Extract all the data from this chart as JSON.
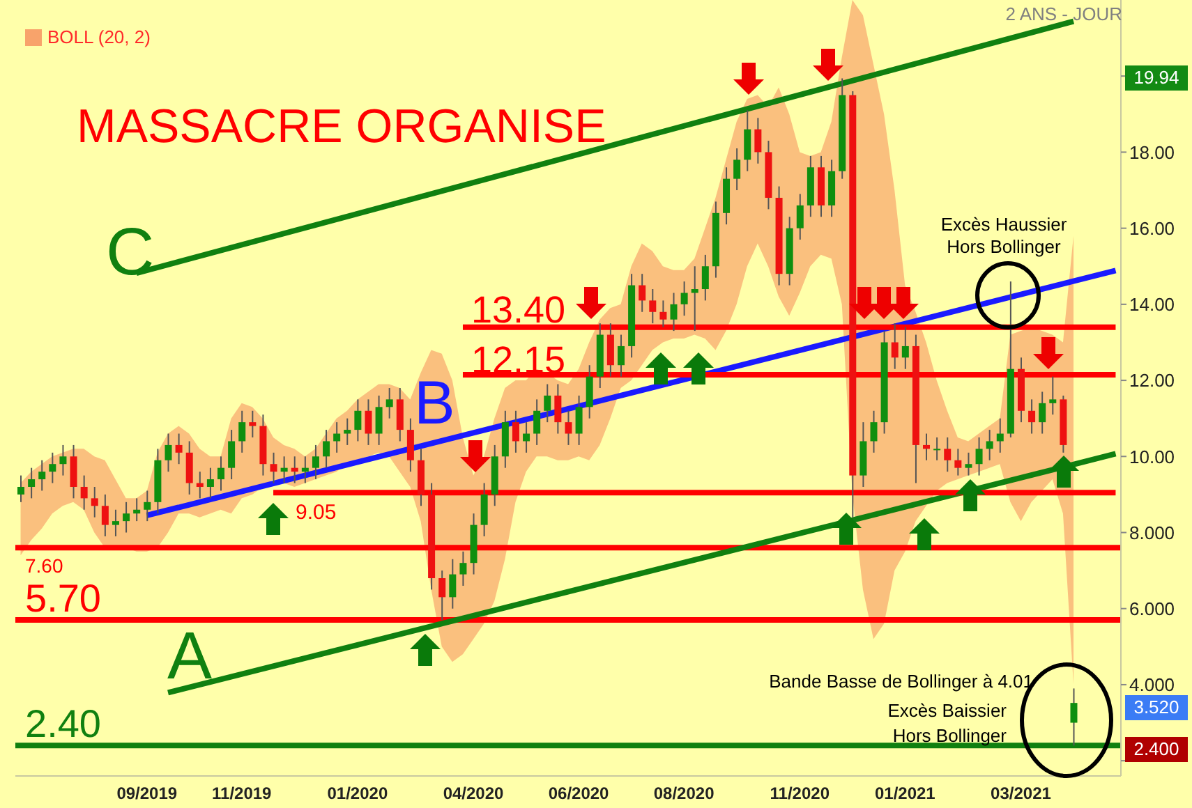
{
  "chart_data": {
    "type": "candlestick",
    "title": "MASSACRE ORGANISE",
    "categories": [
      null,
      null,
      null,
      null,
      null,
      null,
      null,
      null,
      null,
      null,
      null,
      null,
      "09/2019",
      null,
      null,
      null,
      null,
      null,
      null,
      null,
      null,
      "11/2019",
      null,
      null,
      null,
      null,
      null,
      null,
      null,
      null,
      null,
      null,
      "01/2020",
      null,
      null,
      null,
      null,
      null,
      null,
      null,
      null,
      null,
      null,
      "04/2020",
      null,
      null,
      null,
      null,
      null,
      null,
      null,
      null,
      null,
      "06/2020",
      null,
      null,
      null,
      null,
      null,
      null,
      null,
      null,
      null,
      "08/2020",
      null,
      null,
      null,
      null,
      null,
      null,
      null,
      null,
      null,
      null,
      "11/2020",
      null,
      null,
      null,
      null,
      null,
      null,
      null,
      null,
      null,
      "01/2021",
      null,
      null,
      null,
      null,
      null,
      null,
      null,
      null,
      null,
      null,
      "03/2021",
      null,
      null,
      null,
      null,
      null,
      null,
      null,
      null,
      null
    ],
    "ylim": [
      1.6,
      22
    ],
    "yticks": [
      {
        "value": 2,
        "label": null
      },
      {
        "value": 4,
        "label": "4.000"
      },
      {
        "value": 6,
        "label": "6.000"
      },
      {
        "value": 8,
        "label": "8.000"
      },
      {
        "value": 10,
        "label": "10.00"
      },
      {
        "value": 12,
        "label": "12.00"
      },
      {
        "value": 14,
        "label": "14.00"
      },
      {
        "value": 16,
        "label": "16.00"
      },
      {
        "value": 18,
        "label": "18.00"
      },
      {
        "value": 20,
        "label": null
      }
    ],
    "legend": "top left",
    "series": [
      {
        "ohlc": [
          [
            9.0,
            9.5,
            8.8,
            9.2
          ],
          [
            9.2,
            9.7,
            8.9,
            9.4
          ],
          [
            9.4,
            9.9,
            9.1,
            9.6
          ],
          [
            9.6,
            10.1,
            9.3,
            9.8
          ],
          [
            9.8,
            10.3,
            9.5,
            10.0
          ],
          [
            10.0,
            10.3,
            8.9,
            9.2
          ],
          [
            9.2,
            9.5,
            8.6,
            8.9
          ],
          [
            8.9,
            9.2,
            8.4,
            8.7
          ],
          [
            8.7,
            9.0,
            7.9,
            8.2
          ],
          [
            8.2,
            8.6,
            7.9,
            8.3
          ],
          [
            8.3,
            8.8,
            8.0,
            8.5
          ],
          [
            8.5,
            8.9,
            8.3,
            8.6
          ],
          [
            8.6,
            9.1,
            8.3,
            8.8
          ],
          [
            8.8,
            10.2,
            8.5,
            9.9
          ],
          [
            9.9,
            10.6,
            9.6,
            10.3
          ],
          [
            10.3,
            10.6,
            9.8,
            10.1
          ],
          [
            10.1,
            10.4,
            9.0,
            9.3
          ],
          [
            9.3,
            9.6,
            8.9,
            9.2
          ],
          [
            9.2,
            9.7,
            8.9,
            9.4
          ],
          [
            9.4,
            10.0,
            9.1,
            9.7
          ],
          [
            9.7,
            10.7,
            9.4,
            10.4
          ],
          [
            10.4,
            11.2,
            10.1,
            10.9
          ],
          [
            10.9,
            11.2,
            10.5,
            10.8
          ],
          [
            10.8,
            11.1,
            9.5,
            9.8
          ],
          [
            9.8,
            10.1,
            9.3,
            9.6
          ],
          [
            9.6,
            10.0,
            9.3,
            9.7
          ],
          [
            9.7,
            10.0,
            9.3,
            9.6
          ],
          [
            9.6,
            10.0,
            9.3,
            9.7
          ],
          [
            9.7,
            10.3,
            9.4,
            10.0
          ],
          [
            10.0,
            10.7,
            9.7,
            10.4
          ],
          [
            10.4,
            10.9,
            10.1,
            10.6
          ],
          [
            10.6,
            11.0,
            10.3,
            10.7
          ],
          [
            10.7,
            11.5,
            10.4,
            11.2
          ],
          [
            11.2,
            11.5,
            10.3,
            10.6
          ],
          [
            10.6,
            11.6,
            10.3,
            11.3
          ],
          [
            11.3,
            11.8,
            11.0,
            11.5
          ],
          [
            11.5,
            11.8,
            10.4,
            10.7
          ],
          [
            10.7,
            11.0,
            9.6,
            9.9
          ],
          [
            9.9,
            10.2,
            8.7,
            9.0
          ],
          [
            9.0,
            9.3,
            6.5,
            6.8
          ],
          [
            6.8,
            7.0,
            5.7,
            6.3
          ],
          [
            6.3,
            7.3,
            6.0,
            6.9
          ],
          [
            6.9,
            7.5,
            6.6,
            7.2
          ],
          [
            7.2,
            8.5,
            6.9,
            8.2
          ],
          [
            8.2,
            9.3,
            7.9,
            9.0
          ],
          [
            9.0,
            10.3,
            8.7,
            10.0
          ],
          [
            10.0,
            11.2,
            9.7,
            10.9
          ],
          [
            10.9,
            11.2,
            10.1,
            10.4
          ],
          [
            10.4,
            10.9,
            10.1,
            10.6
          ],
          [
            10.6,
            11.5,
            10.3,
            11.2
          ],
          [
            11.2,
            11.9,
            10.9,
            11.6
          ],
          [
            11.6,
            11.9,
            10.6,
            10.9
          ],
          [
            10.9,
            11.2,
            10.3,
            10.6
          ],
          [
            10.6,
            11.6,
            10.3,
            11.3
          ],
          [
            11.3,
            12.4,
            11.0,
            12.1
          ],
          [
            12.1,
            13.5,
            11.8,
            13.2
          ],
          [
            13.2,
            13.5,
            12.1,
            12.4
          ],
          [
            12.4,
            13.2,
            12.1,
            12.9
          ],
          [
            12.9,
            14.8,
            12.6,
            14.5
          ],
          [
            14.5,
            14.8,
            13.8,
            14.1
          ],
          [
            14.1,
            14.4,
            13.5,
            13.8
          ],
          [
            13.8,
            14.1,
            13.4,
            13.6
          ],
          [
            13.6,
            14.3,
            13.3,
            14.0
          ],
          [
            14.0,
            14.6,
            13.7,
            14.3
          ],
          [
            14.3,
            15.0,
            13.3,
            14.4
          ],
          [
            14.4,
            15.3,
            14.1,
            15.0
          ],
          [
            15.0,
            16.7,
            14.7,
            16.4
          ],
          [
            16.4,
            17.6,
            16.1,
            17.3
          ],
          [
            17.3,
            18.1,
            17.0,
            17.8
          ],
          [
            17.8,
            19.1,
            17.5,
            18.6
          ],
          [
            18.6,
            18.9,
            17.7,
            18.0
          ],
          [
            18.0,
            18.3,
            16.5,
            16.8
          ],
          [
            16.8,
            17.1,
            14.5,
            14.8
          ],
          [
            14.8,
            16.3,
            14.5,
            16.0
          ],
          [
            16.0,
            16.9,
            15.7,
            16.6
          ],
          [
            16.6,
            17.9,
            16.3,
            17.6
          ],
          [
            17.6,
            17.9,
            16.3,
            16.6
          ],
          [
            16.6,
            17.8,
            16.3,
            17.5
          ],
          [
            17.5,
            19.94,
            17.3,
            19.5
          ],
          [
            19.5,
            19.6,
            8.4,
            9.5
          ],
          [
            9.5,
            10.9,
            9.2,
            10.4
          ],
          [
            10.4,
            11.2,
            10.1,
            10.9
          ],
          [
            10.9,
            13.3,
            10.6,
            13.0
          ],
          [
            13.0,
            13.5,
            12.3,
            12.6
          ],
          [
            12.6,
            13.4,
            12.3,
            12.9
          ],
          [
            12.9,
            13.2,
            9.3,
            10.3
          ],
          [
            10.3,
            10.6,
            9.9,
            10.2
          ],
          [
            10.2,
            10.5,
            9.9,
            10.2
          ],
          [
            10.2,
            10.5,
            9.6,
            9.9
          ],
          [
            9.9,
            10.2,
            9.5,
            9.7
          ],
          [
            9.7,
            10.1,
            9.5,
            9.8
          ],
          [
            9.8,
            10.5,
            9.5,
            10.2
          ],
          [
            10.2,
            10.7,
            9.9,
            10.4
          ],
          [
            10.4,
            11.0,
            10.1,
            10.6
          ],
          [
            10.6,
            14.6,
            10.5,
            12.3
          ],
          [
            12.3,
            12.6,
            10.9,
            11.2
          ],
          [
            11.2,
            11.5,
            10.6,
            10.9
          ],
          [
            10.9,
            11.7,
            10.6,
            11.4
          ],
          [
            11.4,
            12.1,
            11.1,
            11.5
          ],
          [
            11.5,
            11.6,
            10.1,
            10.3
          ],
          [
            3.0,
            3.9,
            2.4,
            3.52
          ],
          null,
          null,
          null,
          null
        ],
        "colors": [
          "#0f8f0f",
          "#0f8f0f",
          "#0f8f0f",
          "#0f8f0f",
          "#0f8f0f",
          "#ee1111",
          "#ee1111",
          "#ee1111",
          "#ee1111",
          "#0f8f0f",
          "#0f8f0f",
          "#0f8f0f",
          "#0f8f0f",
          "#0f8f0f",
          "#0f8f0f",
          "#ee1111",
          "#ee1111",
          "#ee1111",
          "#0f8f0f",
          "#0f8f0f",
          "#0f8f0f",
          "#0f8f0f",
          "#ee1111",
          "#ee1111",
          "#ee1111",
          "#0f8f0f",
          "#ee1111",
          "#0f8f0f",
          "#0f8f0f",
          "#0f8f0f",
          "#0f8f0f",
          "#0f8f0f",
          "#0f8f0f",
          "#ee1111",
          "#0f8f0f",
          "#0f8f0f",
          "#ee1111",
          "#ee1111",
          "#ee1111",
          "#ee1111",
          "#ee1111",
          "#0f8f0f",
          "#0f8f0f",
          "#0f8f0f",
          "#0f8f0f",
          "#0f8f0f",
          "#0f8f0f",
          "#ee1111",
          "#0f8f0f",
          "#0f8f0f",
          "#0f8f0f",
          "#ee1111",
          "#ee1111",
          "#0f8f0f",
          "#0f8f0f",
          "#0f8f0f",
          "#ee1111",
          "#0f8f0f",
          "#0f8f0f",
          "#ee1111",
          "#ee1111",
          "#ee1111",
          "#0f8f0f",
          "#0f8f0f",
          "#0f8f0f",
          "#0f8f0f",
          "#0f8f0f",
          "#0f8f0f",
          "#0f8f0f",
          "#0f8f0f",
          "#ee1111",
          "#ee1111",
          "#ee1111",
          "#0f8f0f",
          "#0f8f0f",
          "#0f8f0f",
          "#ee1111",
          "#0f8f0f",
          "#0f8f0f",
          "#ee1111",
          "#0f8f0f",
          "#0f8f0f",
          "#0f8f0f",
          "#ee1111",
          "#0f8f0f",
          "#ee1111",
          "#ee1111",
          "#0f8f0f",
          "#ee1111",
          "#ee1111",
          "#0f8f0f",
          "#0f8f0f",
          "#0f8f0f",
          "#0f8f0f",
          "#0f8f0f",
          "#ee1111",
          "#ee1111",
          "#0f8f0f",
          "#0f8f0f",
          "#ee1111",
          "#0f8f0f",
          null,
          null,
          null,
          null
        ]
      },
      {
        "type": "area",
        "name": "BOLL (20, 2)",
        "color": "#f24a2e",
        "values": [
          null,
          null,
          null,
          null,
          null,
          null,
          null,
          null,
          null,
          null,
          null,
          null,
          null,
          null,
          null,
          null,
          null,
          null,
          null,
          null,
          null,
          null,
          null,
          null,
          null,
          null,
          null,
          null,
          null,
          null,
          null,
          null,
          null,
          null,
          null,
          null,
          null,
          null,
          null,
          null,
          null,
          null,
          null,
          null,
          null,
          null,
          null,
          null,
          null,
          null,
          null,
          null,
          null,
          null,
          null,
          null,
          null,
          null,
          null,
          null,
          null,
          null,
          null,
          null,
          null,
          null,
          null,
          null,
          null,
          null,
          null,
          null,
          null,
          null,
          null,
          null,
          null,
          null,
          null,
          null,
          null,
          null,
          null,
          null,
          null,
          null,
          null,
          null,
          null,
          null,
          null,
          null,
          null,
          null,
          null,
          null,
          null,
          null,
          null,
          null,
          null,
          null,
          null,
          null,
          null
        ],
        "lower": [
          7.4,
          7.8,
          8.1,
          8.5,
          8.7,
          8.8,
          8.6,
          8.0,
          7.6,
          7.6,
          7.6,
          7.5,
          7.5,
          7.6,
          8.0,
          8.5,
          8.5,
          8.4,
          8.5,
          8.6,
          8.5,
          8.9,
          9.0,
          9.2,
          9.4,
          9.3,
          9.2,
          9.3,
          9.4,
          9.5,
          9.6,
          9.8,
          9.9,
          10.0,
          10.1,
          10.0,
          9.6,
          9.2,
          8.3,
          6.5,
          5.0,
          4.6,
          4.8,
          5.2,
          5.6,
          6.2,
          7.3,
          8.8,
          9.6,
          10.0,
          10.0,
          9.9,
          9.9,
          10.0,
          9.9,
          10.3,
          11.0,
          11.8,
          12.0,
          12.4,
          12.8,
          13.0,
          13.1,
          13.1,
          13.2,
          13.1,
          12.8,
          13.3,
          14.0,
          15.0,
          15.6,
          15.0,
          14.2,
          13.7,
          14.3,
          15.0,
          15.3,
          15.2,
          14.0,
          9.0,
          6.5,
          5.2,
          5.6,
          7.0,
          7.5,
          8.3,
          8.7,
          9.1,
          9.3,
          9.4,
          9.5,
          9.6,
          9.7,
          9.8,
          8.8,
          8.3,
          8.8,
          9.1,
          9.4,
          8.5,
          4.01,
          null,
          null,
          null,
          null
        ],
        "upper": [
          9.3,
          9.6,
          9.8,
          10.0,
          10.1,
          10.2,
          10.2,
          10.0,
          9.9,
          9.4,
          8.9,
          8.9,
          9.1,
          10.1,
          10.6,
          10.8,
          10.6,
          10.2,
          10.0,
          10.0,
          11.0,
          11.4,
          11.3,
          11.0,
          10.5,
          10.3,
          10.2,
          10.0,
          10.2,
          10.6,
          11.0,
          11.2,
          11.5,
          11.7,
          11.9,
          11.9,
          11.8,
          11.5,
          12.2,
          12.8,
          12.7,
          12.0,
          10.5,
          9.5,
          10.0,
          11.0,
          11.8,
          12.0,
          12.0,
          12.3,
          12.2,
          12.0,
          11.9,
          12.3,
          13.0,
          13.6,
          13.9,
          14.0,
          15.0,
          15.6,
          15.4,
          15.0,
          14.9,
          14.9,
          15.2,
          16.0,
          16.8,
          17.8,
          18.8,
          19.4,
          19.5,
          19.2,
          19.7,
          19.0,
          18.0,
          17.9,
          18.0,
          18.8,
          20.5,
          22,
          21.6,
          20.3,
          19.0,
          17.0,
          14.5,
          13.8,
          13.0,
          12.0,
          11.2,
          10.5,
          10.4,
          10.6,
          10.8,
          11.0,
          13.2,
          13.3,
          13.4,
          13.3,
          13.2,
          13.0,
          15.8,
          null,
          null,
          null,
          null
        ]
      },
      {
        "type": "line",
        "color": "#108010",
        "values": [
          null,
          null,
          null,
          null,
          null,
          null,
          null,
          null,
          null,
          null,
          null,
          null,
          null,
          null,
          3.79,
          null,
          null,
          null,
          null,
          null,
          null,
          null,
          null,
          null,
          null,
          null,
          null,
          null,
          null,
          null,
          null,
          null,
          null,
          null,
          null,
          null,
          null,
          null,
          null,
          null,
          null,
          null,
          null,
          null,
          null,
          null,
          null,
          null,
          null,
          null,
          null,
          null,
          null,
          null,
          null,
          null,
          null,
          null,
          null,
          null,
          null,
          null,
          null,
          null,
          null,
          null,
          null,
          null,
          null,
          null,
          null,
          null,
          null,
          null,
          null,
          null,
          null,
          null,
          null,
          null,
          null,
          null,
          null,
          null,
          null,
          null,
          null,
          null,
          null,
          null,
          null,
          null,
          null,
          null,
          null,
          null,
          null,
          null,
          null,
          null,
          null,
          null,
          null,
          null,
          10.07
        ]
      },
      {
        "type": "line",
        "color": "#1a1aff",
        "values": [
          null,
          null,
          null,
          null,
          null,
          null,
          null,
          null,
          null,
          null,
          null,
          null,
          8.45,
          null,
          null,
          null,
          null,
          null,
          null,
          null,
          null,
          null,
          null,
          null,
          null,
          null,
          null,
          null,
          null,
          null,
          null,
          null,
          null,
          null,
          null,
          null,
          null,
          null,
          null,
          null,
          null,
          null,
          null,
          null,
          null,
          null,
          null,
          null,
          null,
          null,
          null,
          null,
          null,
          null,
          null,
          null,
          null,
          null,
          null,
          null,
          null,
          null,
          null,
          null,
          null,
          null,
          null,
          null,
          null,
          null,
          null,
          null,
          null,
          null,
          null,
          null,
          null,
          null,
          null,
          null,
          null,
          null,
          null,
          null,
          null,
          null,
          null,
          null,
          null,
          null,
          null,
          null,
          null,
          null,
          null,
          null,
          null,
          null,
          null,
          null,
          null,
          null,
          null,
          null,
          14.89
        ]
      },
      {
        "type": "line",
        "color": "#108010",
        "values": [
          null,
          null,
          null,
          null,
          null,
          null,
          null,
          null,
          null,
          null,
          null,
          14.82,
          null,
          null,
          null,
          null,
          null,
          null,
          null,
          null,
          null,
          null,
          null,
          null,
          null,
          null,
          null,
          null,
          null,
          null,
          null,
          null,
          null,
          null,
          null,
          null,
          null,
          null,
          null,
          null,
          null,
          null,
          null,
          null,
          null,
          null,
          null,
          null,
          null,
          null,
          null,
          null,
          null,
          null,
          null,
          null,
          null,
          null,
          null,
          null,
          null,
          null,
          null,
          null,
          null,
          null,
          null,
          null,
          null,
          null,
          null,
          null,
          null,
          null,
          null,
          null,
          null,
          null,
          null,
          null,
          null,
          null,
          null,
          null,
          null,
          null,
          null,
          null,
          null,
          null,
          null,
          null,
          null,
          null,
          null,
          null,
          null,
          null,
          null,
          null,
          21.44,
          null,
          null,
          null,
          null
        ]
      },
      {
        "type": "line",
        "color": "#ff0000",
        "values": [
          null,
          null,
          null,
          null,
          null,
          null,
          null,
          null,
          null,
          null,
          null,
          null,
          null,
          null,
          null,
          null,
          null,
          null,
          null,
          null,
          null,
          null,
          null,
          null,
          9.05,
          null,
          null,
          null,
          null,
          null,
          null,
          null,
          null,
          null,
          null,
          null,
          null,
          null,
          null,
          null,
          null,
          null,
          null,
          null,
          null,
          null,
          null,
          null,
          null,
          null,
          null,
          null,
          null,
          null,
          null,
          null,
          null,
          null,
          null,
          null,
          null,
          null,
          null,
          null,
          null,
          null,
          null,
          null,
          null,
          null,
          null,
          null,
          null,
          null,
          null,
          null,
          null,
          null,
          null,
          null,
          null,
          null,
          null,
          null,
          null,
          null,
          null,
          null,
          null,
          null,
          null,
          null,
          null,
          null,
          null,
          null,
          null,
          null,
          null,
          null,
          null,
          null,
          null,
          null,
          9.05
        ]
      },
      {
        "type": "line",
        "color": "#ff0000",
        "values": [
          null,
          null,
          null,
          null,
          null,
          null,
          null,
          null,
          null,
          null,
          null,
          null,
          null,
          null,
          null,
          null,
          null,
          null,
          null,
          null,
          null,
          null,
          null,
          null,
          null,
          null,
          null,
          null,
          null,
          null,
          null,
          null,
          null,
          null,
          null,
          null,
          null,
          null,
          null,
          null,
          null,
          null,
          12.15,
          null,
          null,
          null,
          null,
          null,
          null,
          null,
          null,
          null,
          null,
          null,
          null,
          null,
          null,
          null,
          null,
          null,
          null,
          null,
          null,
          null,
          null,
          null,
          null,
          null,
          null,
          null,
          null,
          null,
          null,
          null,
          null,
          null,
          null,
          null,
          null,
          null,
          null,
          null,
          null,
          null,
          null,
          null,
          null,
          null,
          null,
          null,
          null,
          null,
          null,
          null,
          null,
          null,
          null,
          null,
          null,
          null,
          null,
          null,
          null,
          null,
          12.15
        ]
      },
      {
        "type": "line",
        "color": "#ff0000",
        "values": [
          null,
          null,
          null,
          null,
          null,
          null,
          null,
          null,
          null,
          null,
          null,
          null,
          null,
          null,
          null,
          null,
          null,
          null,
          null,
          null,
          null,
          null,
          null,
          null,
          null,
          null,
          null,
          null,
          null,
          null,
          null,
          null,
          null,
          null,
          null,
          null,
          null,
          null,
          null,
          null,
          null,
          null,
          13.4,
          null,
          null,
          null,
          null,
          null,
          null,
          null,
          null,
          null,
          null,
          null,
          null,
          null,
          null,
          null,
          null,
          null,
          null,
          null,
          null,
          null,
          null,
          null,
          null,
          null,
          null,
          null,
          null,
          null,
          null,
          null,
          null,
          null,
          null,
          null,
          null,
          null,
          null,
          null,
          null,
          null,
          null,
          null,
          null,
          null,
          null,
          null,
          null,
          null,
          null,
          null,
          null,
          null,
          null,
          null,
          null,
          null,
          null,
          null,
          null,
          null,
          13.4
        ]
      }
    ],
    "ref_lines": [
      {
        "axis": "y",
        "value": 2.4,
        "label": "2.40",
        "color": "#108010"
      },
      {
        "axis": "y",
        "value": 5.7,
        "label": "5.70",
        "color": "#ff0000"
      },
      {
        "axis": "y",
        "value": 7.6,
        "label": "7.60",
        "color": "#ff0000"
      }
    ],
    "annotations": [
      "2 ANS - JOUR",
      "A",
      "B",
      "C",
      "13.40",
      "12.15",
      "9.05",
      "Excès Haussier",
      "Hors Bollinger",
      "Bande Basse de Bollinger à 4.01",
      "Excès Baissier",
      "Hors Bollinger",
      "19.94",
      "3.520",
      "2.400"
    ]
  }
}
